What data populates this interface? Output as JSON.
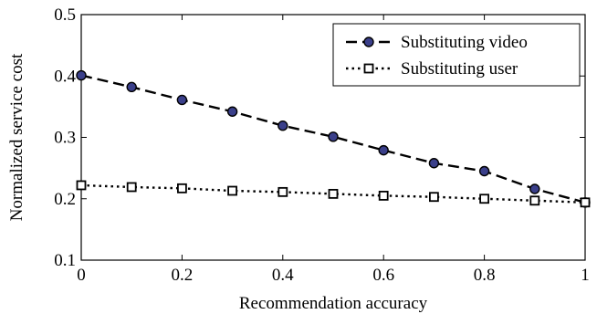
{
  "chart_data": {
    "type": "line",
    "xlabel": "Recommendation accuracy",
    "ylabel": "Normalized service cost",
    "xlim": [
      0,
      1
    ],
    "ylim": [
      0.1,
      0.5
    ],
    "xticks": [
      0,
      0.2,
      0.4,
      0.6,
      0.8,
      1
    ],
    "xtick_labels": [
      "0",
      "0.2",
      "0.4",
      "0.6",
      "0.8",
      "1"
    ],
    "yticks": [
      0.1,
      0.2,
      0.3,
      0.4,
      0.5
    ],
    "ytick_labels": [
      "0.1",
      "0.2",
      "0.3",
      "0.4",
      "0.5"
    ],
    "grid": false,
    "legend_position": "top-right",
    "x": [
      0,
      0.1,
      0.2,
      0.3,
      0.4,
      0.5,
      0.6,
      0.7,
      0.8,
      0.9,
      1.0
    ],
    "series": [
      {
        "name": "Substituting video",
        "values": [
          0.401,
          0.382,
          0.361,
          0.342,
          0.319,
          0.301,
          0.279,
          0.258,
          0.245,
          0.216,
          0.194
        ],
        "line_style": "dashed",
        "marker": "circle",
        "marker_color": "#3a3f8a",
        "line_color": "#000000"
      },
      {
        "name": "Substituting user",
        "values": [
          0.222,
          0.219,
          0.217,
          0.213,
          0.211,
          0.208,
          0.205,
          0.203,
          0.2,
          0.197,
          0.194
        ],
        "line_style": "dotted",
        "marker": "square",
        "marker_color": "#ffffff",
        "line_color": "#000000"
      }
    ]
  }
}
